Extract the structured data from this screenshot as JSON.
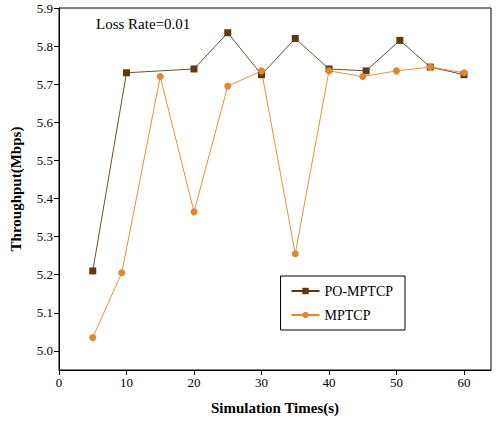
{
  "chart_data": {
    "type": "line",
    "xlabel": "Simulation Times(s)",
    "ylabel": "Throughput(Mbps)",
    "annotations": [
      "Loss Rate=0.01"
    ],
    "xlim": [
      0,
      64
    ],
    "xticks": [
      0,
      10,
      20,
      30,
      40,
      50,
      60
    ],
    "ylim": [
      4.95,
      5.9
    ],
    "yticks": [
      {
        "value": 5.0,
        "label": "5.0"
      },
      {
        "value": 5.1,
        "label": "5.1"
      },
      {
        "value": 5.2,
        "label": "5.2"
      },
      {
        "value": 5.3,
        "label": "5.3"
      },
      {
        "value": 5.4,
        "label": "5.4"
      },
      {
        "value": 5.5,
        "label": "5.5"
      },
      {
        "value": 5.6,
        "label": "5.6"
      },
      {
        "value": 5.7,
        "label": "5.7"
      },
      {
        "value": 5.8,
        "label": "5.8"
      },
      {
        "value": 5.9,
        "label": "5.9"
      }
    ],
    "grid": false,
    "legend": "lower right",
    "series": [
      {
        "name": "PO-MPTCP",
        "color": "#5c3b12",
        "marker": "square",
        "line_style": "solid",
        "x": [
          5,
          10,
          20,
          25,
          30,
          35,
          40,
          45.5,
          50.5,
          55,
          60
        ],
        "values": [
          5.21,
          5.73,
          5.74,
          5.835,
          5.725,
          5.82,
          5.74,
          5.735,
          5.815,
          5.745,
          5.725
        ]
      },
      {
        "name": "MPTCP",
        "color": "#e0862e",
        "marker": "circle",
        "line_style": "solid",
        "x": [
          5,
          9.3,
          15,
          20,
          25,
          30,
          35,
          40,
          45,
          50,
          55,
          60
        ],
        "values": [
          5.035,
          5.205,
          5.72,
          5.365,
          5.695,
          5.735,
          5.255,
          5.735,
          5.72,
          5.735,
          5.745,
          5.73
        ]
      }
    ]
  }
}
